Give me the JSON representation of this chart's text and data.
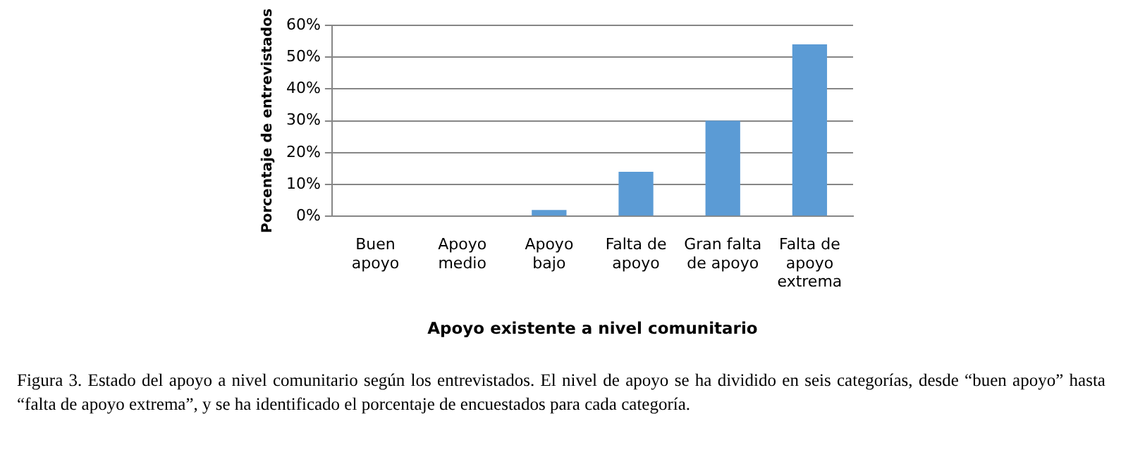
{
  "chart_data": {
    "type": "bar",
    "xlabel": "Apoyo existente a nivel comunitario",
    "ylabel": "Porcentaje de entrevistados",
    "categories": [
      "Buen apoyo",
      "Apoyo medio",
      "Apoyo bajo",
      "Falta de apoyo",
      "Gran falta de apoyo",
      "Falta de apoyo extrema"
    ],
    "values": [
      0,
      0,
      2,
      14,
      30,
      54
    ],
    "color": "#5b9bd5",
    "ylim": [
      0,
      60
    ],
    "yticks": [
      {
        "value": 0,
        "label": "0%"
      },
      {
        "value": 10,
        "label": "10%"
      },
      {
        "value": 20,
        "label": "20%"
      },
      {
        "value": 30,
        "label": "30%"
      },
      {
        "value": 40,
        "label": "40%"
      },
      {
        "value": 50,
        "label": "50%"
      },
      {
        "value": 60,
        "label": "60%"
      }
    ],
    "grid": "y",
    "legend": false,
    "annotations": [
      "Figura 3. Estado del apoyo a nivel comunitario según los entrevistados. El nivel de apoyo se ha dividido en seis categorías, desde “buen apoyo” hasta “falta de apoyo extrema”, y se ha identificado el porcentaje de encuestados para cada categoría."
    ]
  }
}
